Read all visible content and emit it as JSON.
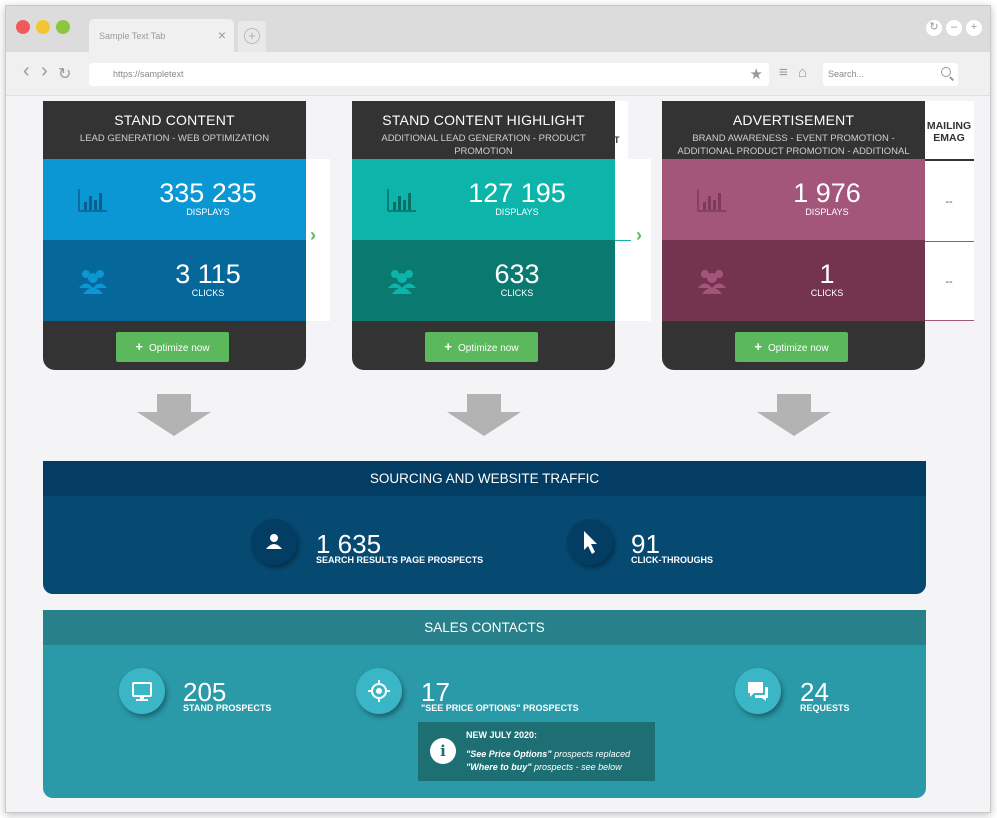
{
  "browser": {
    "tab_title": "Sample Text Tab",
    "tab_close": "×",
    "new_tab": "+",
    "url": "https://sampletext",
    "search_placeholder": "Search...",
    "back": "‹",
    "forward": "›",
    "reload": "↻",
    "star": "★",
    "menu": "≡",
    "home": "⌂",
    "win_restore": "↻",
    "win_min": "–",
    "win_add": "+",
    "colors": {
      "close": "#f25a5a",
      "minimize": "#f5c531",
      "maximize": "#8dc63f"
    }
  },
  "cards": [
    {
      "title": "STAND CONTENT",
      "subtitle": "LEAD GENERATION - WEB OPTIMIZATION",
      "displays_value": "335 235",
      "displays_label": "DISPLAYS",
      "clicks_value": "3 115",
      "clicks_label": "CLICKS",
      "button": "Optimize now",
      "colors": {
        "top": "#0a97d4",
        "bottom": "#06679a",
        "icon": "#0c5e8e"
      }
    },
    {
      "title": "STAND CONTENT HIGHLIGHT",
      "subtitle": "ADDITIONAL LEAD GENERATION - PRODUCT PROMOTION",
      "displays_value": "127 195",
      "displays_label": "DISPLAYS",
      "clicks_value": "633",
      "clicks_label": "CLICKS",
      "button": "Optimize now",
      "colors": {
        "top": "#0db4a9",
        "bottom": "#0a7a70",
        "icon": "#0a6d64"
      }
    },
    {
      "title": "ADVERTISEMENT",
      "subtitle": "BRAND AWARENESS - EVENT PROMOTION - ADDITIONAL PRODUCT PROMOTION - ADDITIONAL LEAD GENERATION",
      "displays_value": "1 976",
      "displays_label": "DISPLAYS",
      "clicks_value": "1",
      "clicks_label": "CLICKS",
      "button": "Optimize now",
      "colors": {
        "top": "#a35679",
        "bottom": "#74344f",
        "icon": "#7d3a59"
      }
    }
  ],
  "side_panel": {
    "partial_header": "T",
    "mailing_header_1": "MAILING",
    "mailing_header_2": "EMAG",
    "dash_1": "--",
    "dash_2": "--"
  },
  "sourcing": {
    "title": "SOURCING AND WEBSITE TRAFFIC",
    "prospects_value": "1 635",
    "prospects_label": "SEARCH RESULTS PAGE PROSPECTS",
    "clicks_value": "91",
    "clicks_label": "CLICK-THROUGHS",
    "colors": {
      "header": "#033d63",
      "body": "#064a72"
    }
  },
  "sales": {
    "title": "SALES CONTACTS",
    "stand_value": "205",
    "stand_label": "STAND PROSPECTS",
    "price_value": "17",
    "price_label": "\"SEE PRICE OPTIONS\" PROSPECTS",
    "requests_value": "24",
    "requests_label": "REQUESTS",
    "notice_title": "NEW JULY 2020:",
    "notice_line1_em": "\"See Price Options\"",
    "notice_line1_rest": " prospects replaced",
    "notice_line2_em": "\"Where to buy\"",
    "notice_line2_rest": " prospects - see below",
    "notice_icon": "i",
    "colors": {
      "header": "#27808a",
      "body": "#2a99a8",
      "circle": "#3bb6c6"
    }
  }
}
